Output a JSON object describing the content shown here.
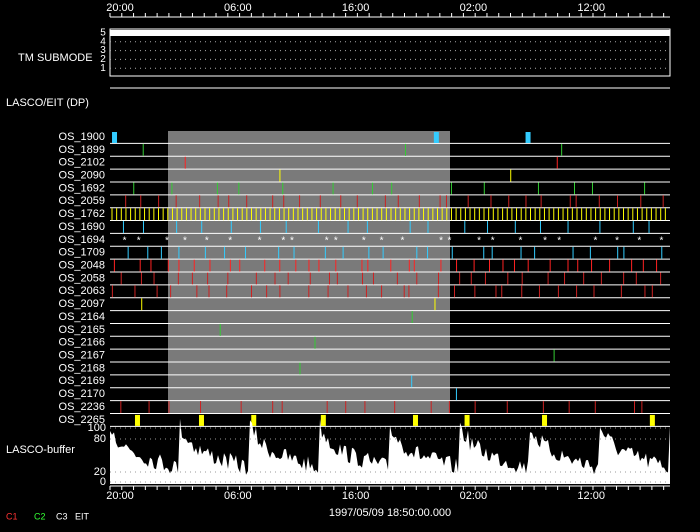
{
  "time_axis": {
    "labels": [
      "20:00",
      "06:00",
      "16:00",
      "02:00",
      "12:00"
    ]
  },
  "tm_submode": {
    "label": "TM SUBMODE",
    "levels": [
      "5",
      "4",
      "3",
      "2",
      "1"
    ]
  },
  "lasco_eit": "LASCO/EIT (DP)",
  "rows": [
    "OS_1900",
    "OS_1899",
    "OS_2102",
    "OS_2090",
    "OS_1692",
    "OS_2059",
    "OS_1762",
    "OS_1690",
    "OS_1694",
    "OS_1709",
    "OS_2048",
    "OS_2058",
    "OS_2063",
    "OS_2097",
    "OS_2164",
    "OS_2165",
    "OS_2166",
    "OS_2167",
    "OS_2168",
    "OS_2169",
    "OS_2170",
    "OS_2236",
    "OS_2265"
  ],
  "buffer": {
    "label": "LASCO-buffer",
    "ticks": [
      "100",
      "80",
      "20",
      "0"
    ]
  },
  "footer": {
    "date": "1997/05/09 18:50:00.000",
    "legend": [
      "C1",
      "C2",
      "C3",
      "EIT"
    ]
  }
}
